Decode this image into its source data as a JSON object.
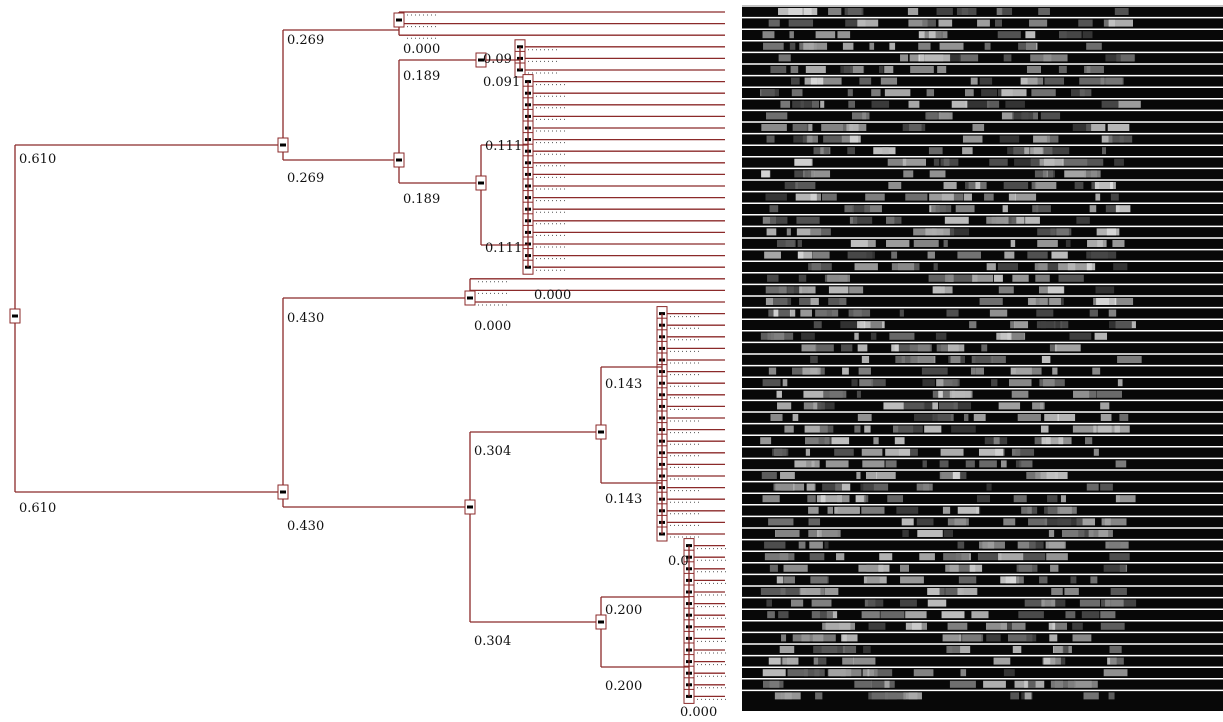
{
  "labels": [
    "0.610",
    "0.610",
    "0.269",
    "0.269",
    "0.000",
    "0.189",
    "0.189",
    "0.09",
    "0.091",
    "0.111",
    "0.111",
    "0.000",
    "0.430",
    "0.430",
    "0.000",
    "0.304",
    "0.304",
    "0.143",
    "0.143",
    "0.0",
    "0.200",
    "0.200",
    "0.000"
  ]
}
